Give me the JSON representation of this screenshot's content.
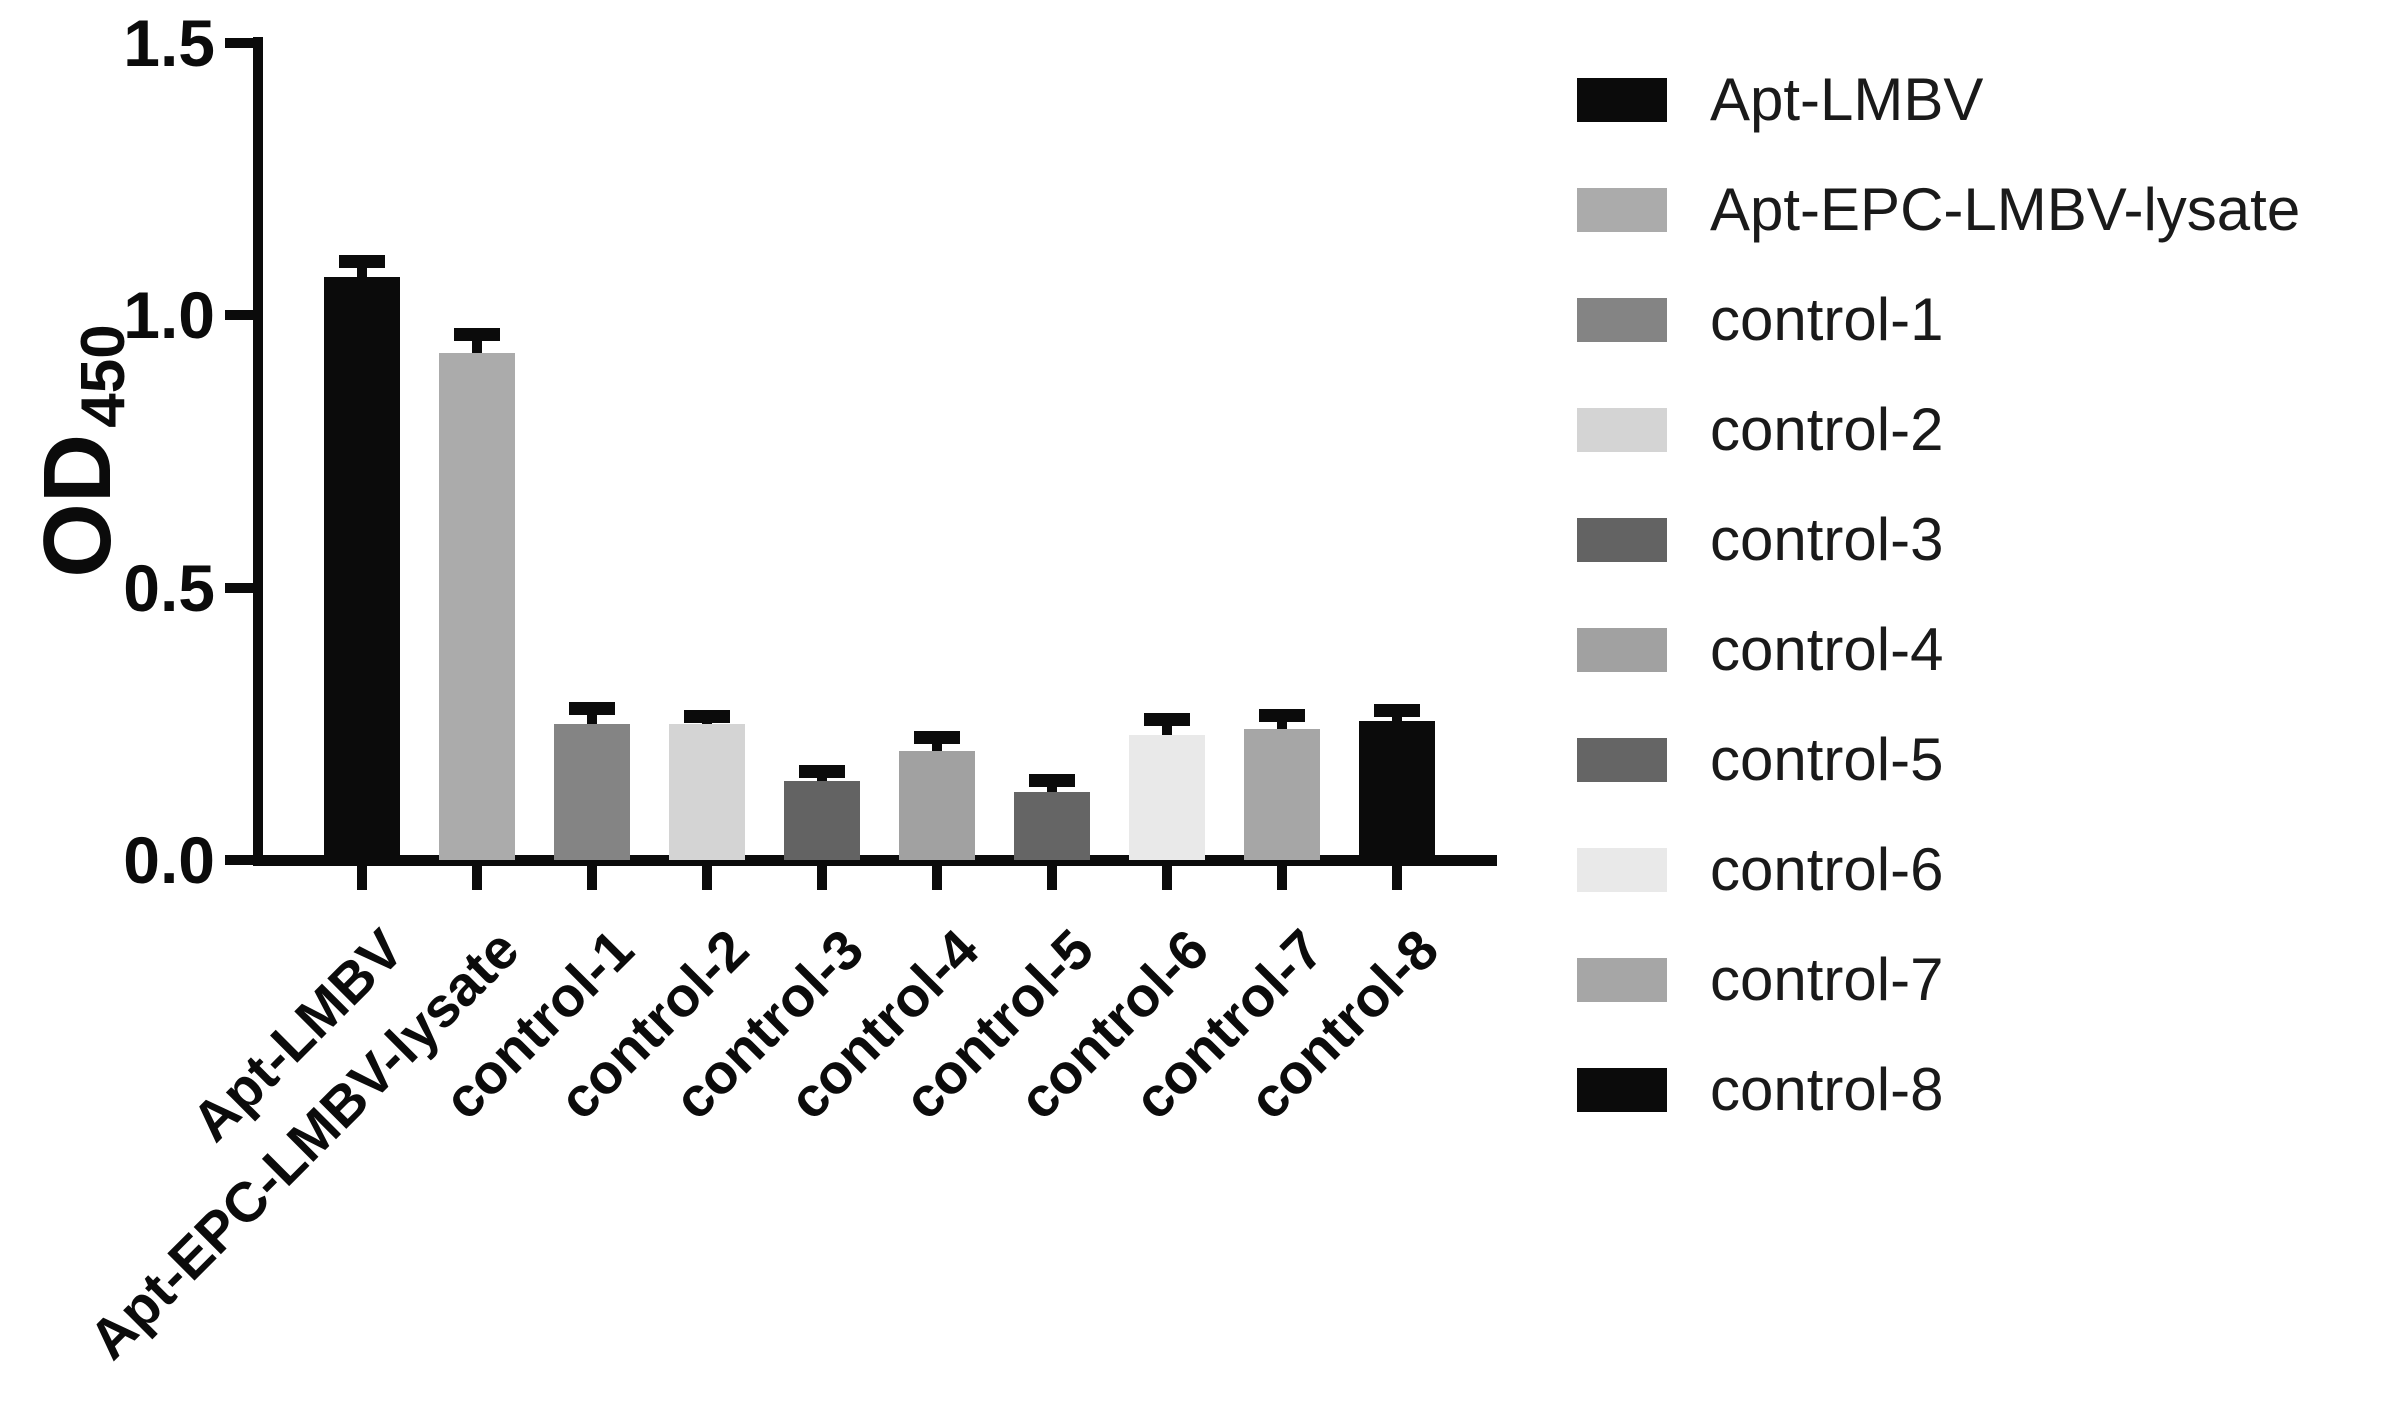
{
  "figure": {
    "background": "#ffffff"
  },
  "chart_data": {
    "type": "bar",
    "title": "",
    "ylabel": "OD",
    "ylabel_subscript": "450",
    "xlabel": "",
    "ylim": [
      0,
      1.5
    ],
    "ytick_values": [
      0,
      0.5,
      1.0,
      1.5
    ],
    "yticks": [
      "0.0",
      "0.5",
      "1.0",
      "1.5"
    ],
    "grid": false,
    "legend_position": "right-column",
    "categories": [
      "Apt-LMBV",
      "Apt-EPC-LMBV-lysate",
      "control-1",
      "control-2",
      "control-3",
      "control-4",
      "control-5",
      "control-6",
      "control-7",
      "control-8"
    ],
    "series": [
      {
        "name": "OD450",
        "values": [
          1.07,
          0.93,
          0.25,
          0.25,
          0.145,
          0.2,
          0.125,
          0.23,
          0.24,
          0.255
        ],
        "errors_sd": [
          0.03,
          0.035,
          0.028,
          0.015,
          0.018,
          0.026,
          0.022,
          0.028,
          0.026,
          0.02
        ]
      }
    ],
    "bar_colors": [
      "#0b0b0b",
      "#ababab",
      "#848484",
      "#d4d4d4",
      "#636363",
      "#a1a1a1",
      "#656565",
      "#e9e9e9",
      "#a6a6a6",
      "#0b0b0b"
    ],
    "axis_color": "#0b0b0b",
    "error_bar_color": "#0b0b0b",
    "text_color": "#1a1a1a"
  }
}
